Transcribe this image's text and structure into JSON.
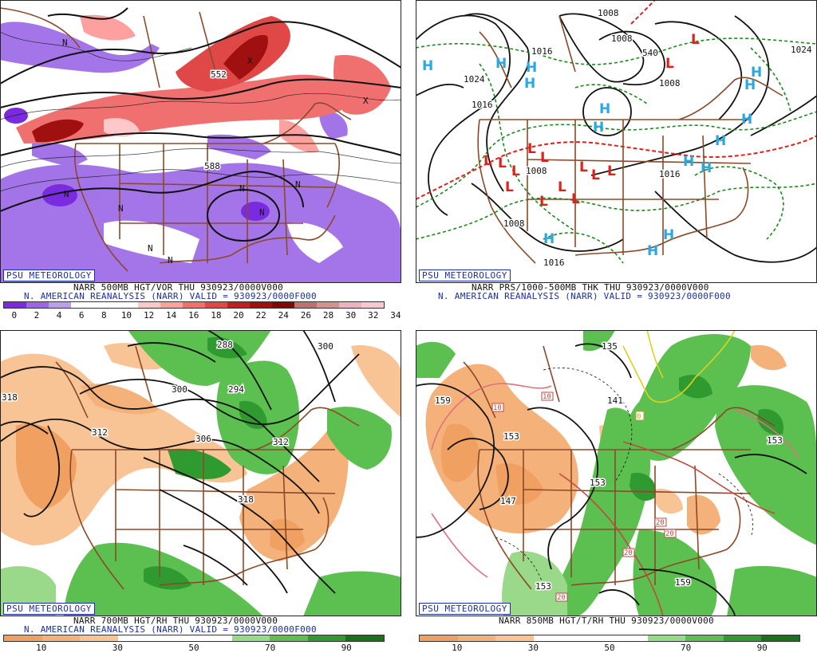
{
  "panels": {
    "p1": {
      "badge": "PSU METEOROLOGY",
      "line1": "NARR 500MB HGT/VOR THU 930923/0000V000",
      "line2": "N. AMERICAN REANALYSIS (NARR) VALID = 930923/0000F000",
      "colorbar": [
        "#7a2be0",
        "#9a66e6",
        "#b8a0ee",
        "#ffffff",
        "#ffffff",
        "#ffffff",
        "#ffc8c8",
        "#ffa0a0",
        "#f07070",
        "#e04848",
        "#c02020",
        "#a01010",
        "#800808",
        "#c07070",
        "#d89090",
        "#f0b0c0",
        "#f8c8d0"
      ],
      "ticks": [
        "0",
        "2",
        "4",
        "6",
        "8",
        "10",
        "12",
        "14",
        "16",
        "18",
        "20",
        "22",
        "24",
        "26",
        "28",
        "30",
        "32",
        "34"
      ],
      "contour_labels": [
        "552",
        "588"
      ],
      "symbol_letters": [
        "N",
        "X"
      ]
    },
    "p2": {
      "badge": "PSU METEOROLOGY",
      "line1": "NARR PRS/1000-500MB THK THU 930923/0000V000",
      "line2": "N. AMERICAN REANALYSIS (NARR) VALID = 930923/0000F000",
      "contour_labels": [
        "1008",
        "1008",
        "1016",
        "1024",
        "1016",
        "1008",
        "1016",
        "1008",
        "1008",
        "1016",
        "540",
        "1024"
      ],
      "highs": "H",
      "lows": "L"
    },
    "p3": {
      "badge": "PSU METEOROLOGY",
      "line1": "NARR 700MB HGT/RH THU 930923/0000V000",
      "line2": "N. AMERICAN REANALYSIS (NARR) VALID = 930923/0000F000",
      "colorbar": [
        "#f0a060",
        "#f4b27a",
        "#f8c495",
        "#ffffff",
        "#ffffff",
        "#ffffff",
        "#9ad88a",
        "#5cc050",
        "#2f9a30",
        "#1a7020"
      ],
      "ticks": [
        "10",
        "30",
        "50",
        "70",
        "90"
      ],
      "contour_labels": [
        "318",
        "312",
        "300",
        "306",
        "294",
        "312",
        "318",
        "288",
        "300"
      ]
    },
    "p4": {
      "badge": "PSU METEOROLOGY",
      "line1": "NARR 850MB HGT/T/RH THU 930923/0000V000",
      "line2": "",
      "colorbar": [
        "#f0a060",
        "#f4b27a",
        "#f8c495",
        "#ffffff",
        "#ffffff",
        "#ffffff",
        "#9ad88a",
        "#5cc050",
        "#2f9a30",
        "#1a7020"
      ],
      "ticks": [
        "10",
        "30",
        "50",
        "70",
        "90"
      ],
      "contour_labels": [
        "159",
        "153",
        "147",
        "153",
        "153",
        "159",
        "141",
        "135",
        "153"
      ],
      "temp_labels": [
        "10",
        "10",
        "0",
        "20",
        "20",
        "20",
        "20"
      ]
    }
  },
  "colors": {
    "state_lines": "#8a4a2a",
    "contour": "#111111",
    "dashed_green": "#1a8a1a",
    "thickness_red": "#e0201a",
    "high_symbol": "#2aa8e0",
    "low_symbol": "#e0201a",
    "badge": "#1a2fa8"
  }
}
